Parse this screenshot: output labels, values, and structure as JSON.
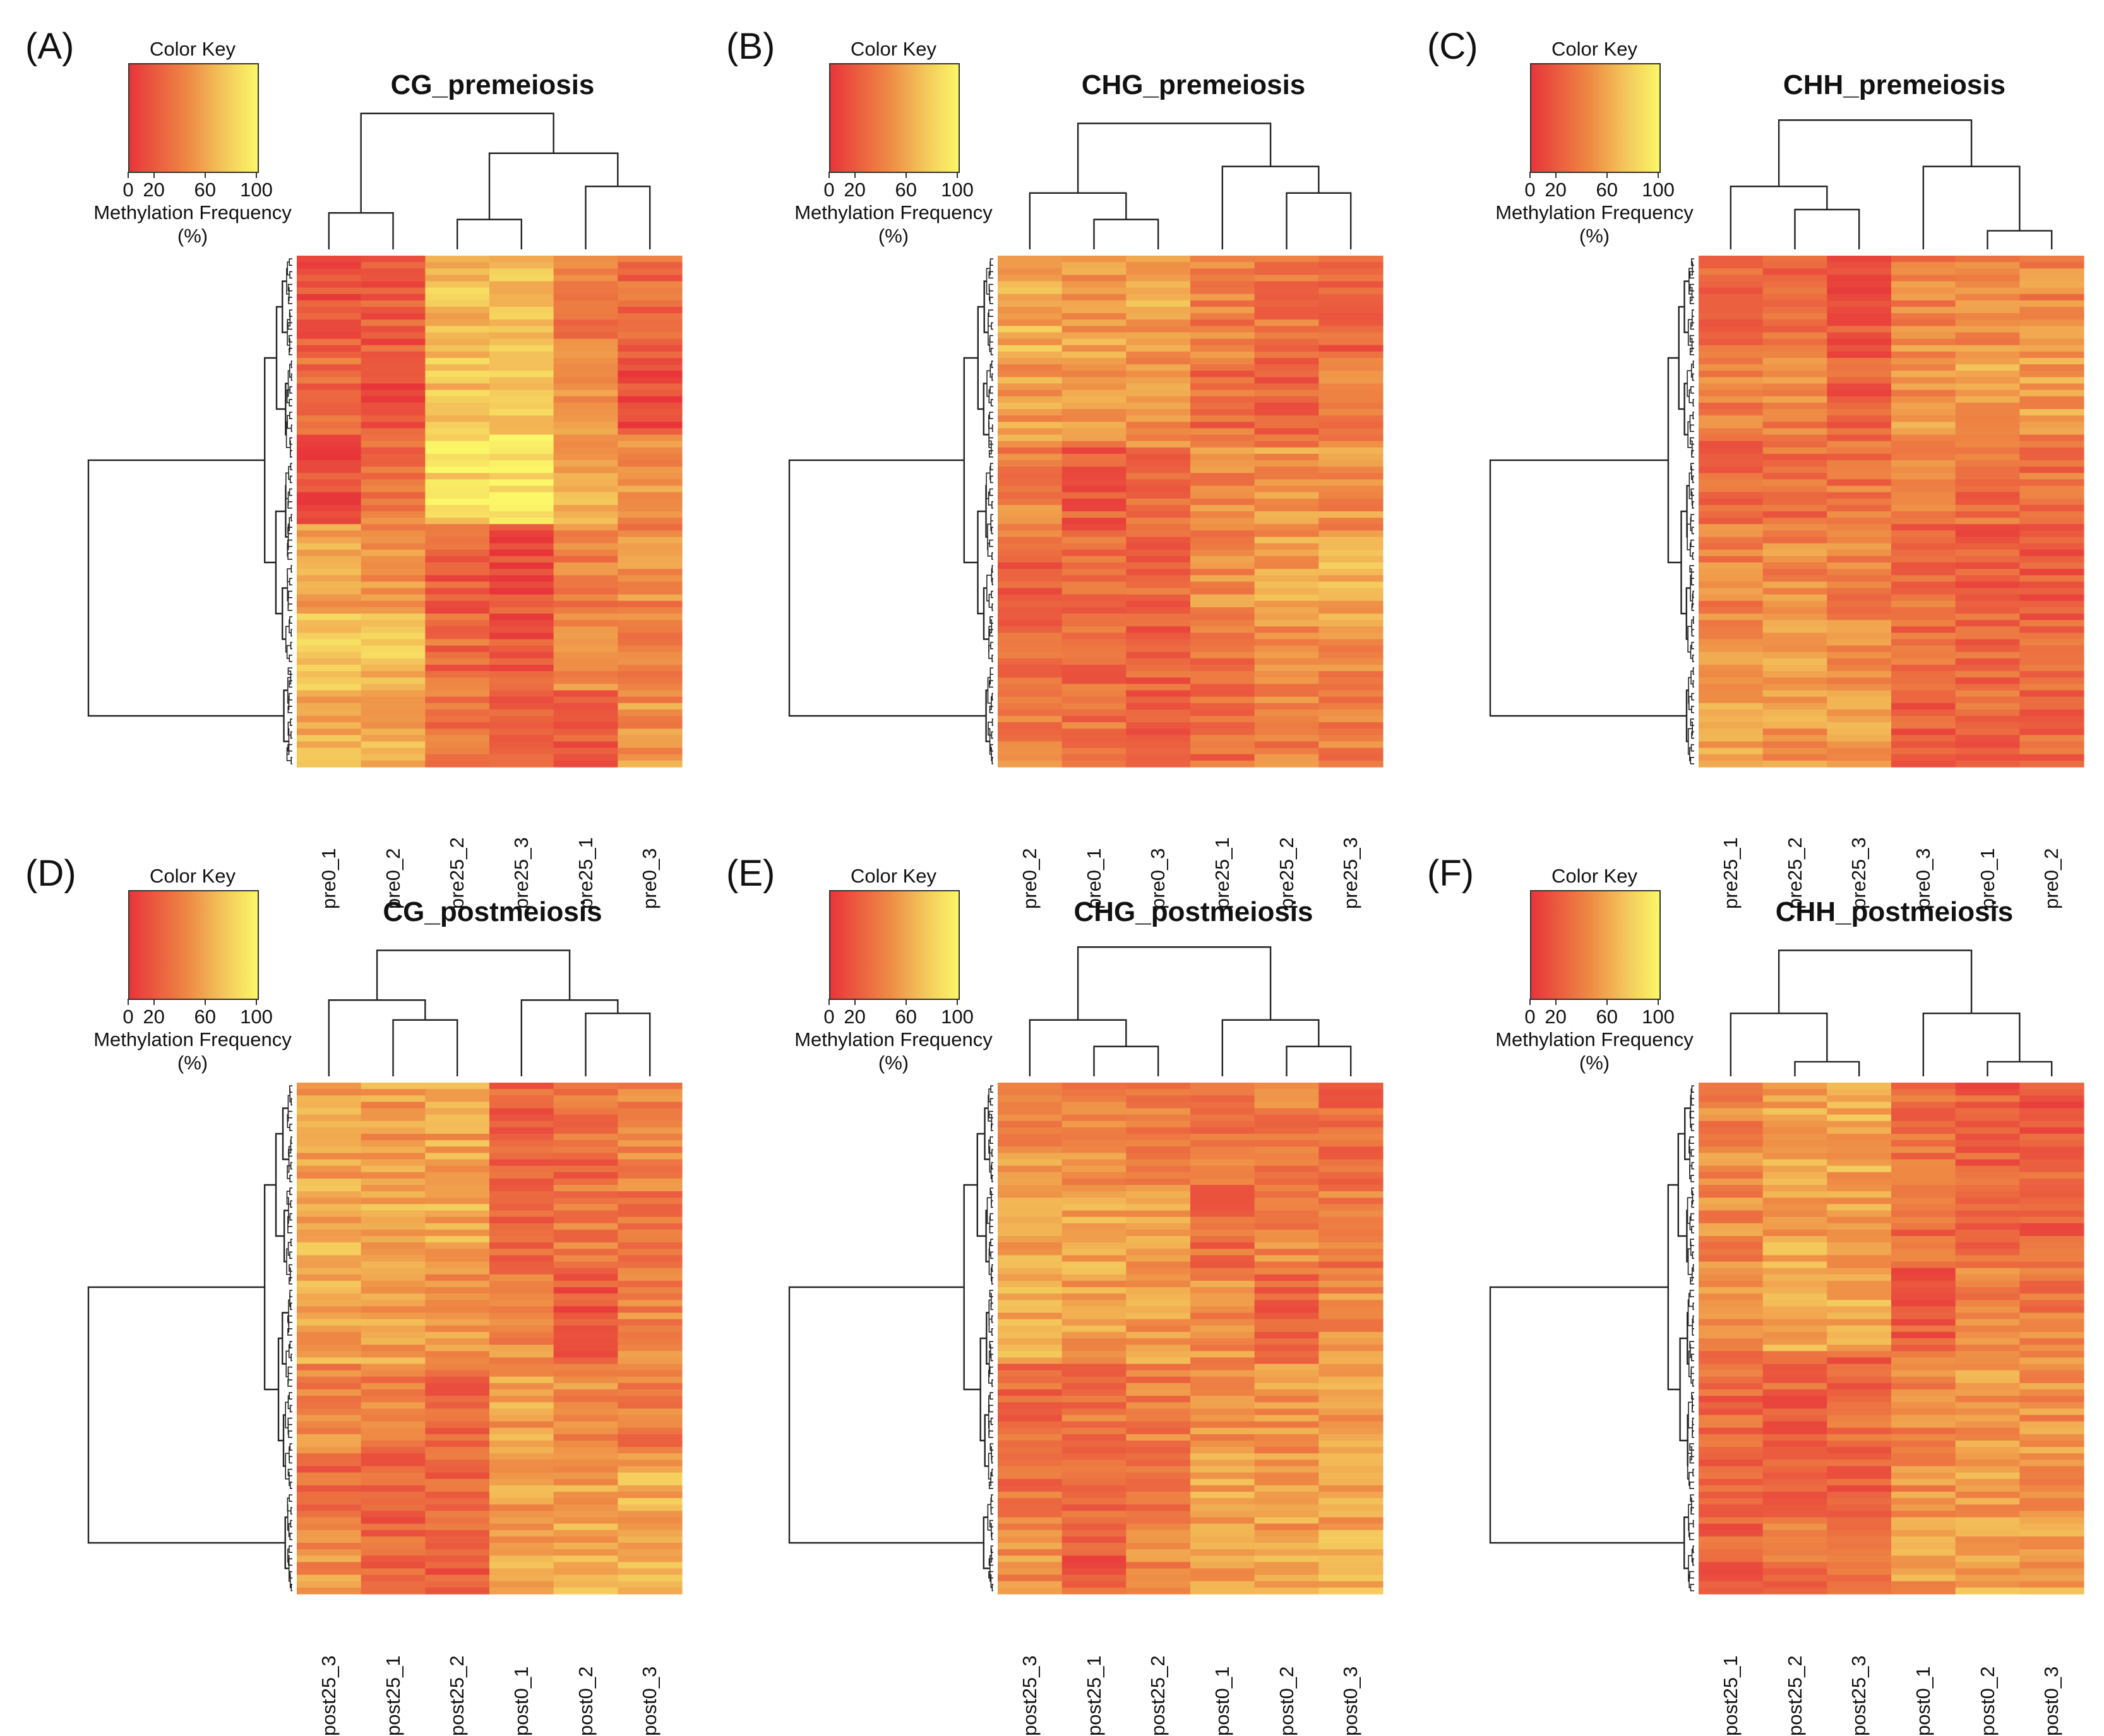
{
  "color_key": {
    "title": "Color Key",
    "ticks": [
      "0",
      "20",
      "60",
      "100"
    ],
    "tick_values": [
      0,
      20,
      60,
      100
    ],
    "axis_label_line1": "Methylation Frequency",
    "axis_label_line2": "(%)",
    "colors": [
      "#e8353a",
      "#ee8844",
      "#f4c95c",
      "#fbf768"
    ]
  },
  "chart_data": [
    {
      "type": "heatmap",
      "panel_label": "(A)",
      "title": "CG_premeiosis",
      "columns": [
        "pre0_1",
        "pre0_2",
        "pre25_2",
        "pre25_3",
        "pre25_1",
        "pre0_3"
      ],
      "value_range": [
        0,
        100
      ],
      "seed": 11,
      "column_dendrogram": [
        [
          0,
          1,
          0.55
        ],
        [
          2,
          3,
          0.45
        ],
        [
          4,
          5,
          0.95
        ],
        [
          7,
          8,
          1.45
        ],
        [
          6,
          9,
          2.05
        ]
      ],
      "blocks": [
        {
          "rows": 16,
          "values": [
            18,
            20,
            70,
            75,
            40,
            30
          ]
        },
        {
          "rows": 12,
          "values": [
            30,
            14,
            72,
            80,
            45,
            12
          ]
        },
        {
          "rows": 14,
          "values": [
            16,
            35,
            85,
            92,
            60,
            48
          ]
        },
        {
          "rows": 14,
          "values": [
            55,
            50,
            22,
            14,
            40,
            45
          ]
        },
        {
          "rows": 12,
          "values": [
            72,
            70,
            30,
            18,
            45,
            40
          ]
        },
        {
          "rows": 12,
          "values": [
            66,
            62,
            32,
            28,
            18,
            50
          ]
        }
      ]
    },
    {
      "type": "heatmap",
      "panel_label": "(B)",
      "title": "CHG_premeiosis",
      "columns": [
        "pre0_2",
        "pre0_1",
        "pre0_3",
        "pre25_1",
        "pre25_2",
        "pre25_3"
      ],
      "value_range": [
        0,
        100
      ],
      "seed": 23,
      "column_dendrogram": [
        [
          1,
          2,
          0.45
        ],
        [
          0,
          6,
          0.85
        ],
        [
          4,
          5,
          0.85
        ],
        [
          3,
          8,
          1.25
        ],
        [
          7,
          9,
          1.9
        ]
      ],
      "blocks": [
        {
          "rows": 16,
          "values": [
            62,
            55,
            58,
            40,
            35,
            22
          ]
        },
        {
          "rows": 14,
          "values": [
            55,
            50,
            52,
            30,
            28,
            40
          ]
        },
        {
          "rows": 14,
          "values": [
            40,
            22,
            28,
            45,
            52,
            50
          ]
        },
        {
          "rows": 14,
          "values": [
            22,
            32,
            30,
            48,
            58,
            62
          ]
        },
        {
          "rows": 12,
          "values": [
            35,
            30,
            25,
            35,
            45,
            42
          ]
        },
        {
          "rows": 10,
          "values": [
            38,
            32,
            28,
            30,
            40,
            38
          ]
        }
      ]
    },
    {
      "type": "heatmap",
      "panel_label": "(C)",
      "title": "CHH_premeiosis",
      "columns": [
        "pre25_1",
        "pre25_2",
        "pre25_3",
        "pre0_3",
        "pre0_1",
        "pre0_2"
      ],
      "value_range": [
        0,
        100
      ],
      "seed": 37,
      "column_dendrogram": [
        [
          1,
          2,
          0.6
        ],
        [
          0,
          6,
          0.95
        ],
        [
          4,
          5,
          0.28
        ],
        [
          3,
          8,
          1.25
        ],
        [
          7,
          9,
          1.95
        ]
      ],
      "blocks": [
        {
          "rows": 14,
          "values": [
            30,
            28,
            20,
            40,
            48,
            45
          ]
        },
        {
          "rows": 14,
          "values": [
            40,
            42,
            22,
            50,
            58,
            55
          ]
        },
        {
          "rows": 14,
          "values": [
            25,
            30,
            35,
            48,
            30,
            32
          ]
        },
        {
          "rows": 14,
          "values": [
            42,
            45,
            40,
            30,
            22,
            20
          ]
        },
        {
          "rows": 12,
          "values": [
            50,
            55,
            48,
            32,
            25,
            25
          ]
        },
        {
          "rows": 12,
          "values": [
            55,
            52,
            58,
            22,
            28,
            30
          ]
        }
      ]
    },
    {
      "type": "heatmap",
      "panel_label": "(D)",
      "title": "CG_postmeiosis",
      "columns": [
        "post25_3",
        "post25_1",
        "post25_2",
        "post0_1",
        "post0_2",
        "post0_3"
      ],
      "value_range": [
        0,
        100
      ],
      "seed": 41,
      "column_dendrogram": [
        [
          1,
          2,
          0.85
        ],
        [
          0,
          6,
          1.15
        ],
        [
          4,
          5,
          0.95
        ],
        [
          3,
          8,
          1.15
        ],
        [
          7,
          9,
          1.9
        ]
      ],
      "blocks": [
        {
          "rows": 16,
          "values": [
            60,
            55,
            58,
            25,
            30,
            40
          ]
        },
        {
          "rows": 14,
          "values": [
            62,
            60,
            62,
            22,
            35,
            38
          ]
        },
        {
          "rows": 14,
          "values": [
            58,
            55,
            52,
            45,
            20,
            42
          ]
        },
        {
          "rows": 14,
          "values": [
            45,
            40,
            25,
            55,
            45,
            40
          ]
        },
        {
          "rows": 12,
          "values": [
            30,
            25,
            30,
            55,
            58,
            62
          ]
        },
        {
          "rows": 10,
          "values": [
            50,
            25,
            20,
            60,
            62,
            65
          ]
        }
      ]
    },
    {
      "type": "heatmap",
      "panel_label": "(E)",
      "title": "CHG_postmeiosis",
      "columns": [
        "post25_3",
        "post25_1",
        "post25_2",
        "post0_1",
        "post0_2",
        "post0_3"
      ],
      "value_range": [
        0,
        100
      ],
      "seed": 53,
      "column_dendrogram": [
        [
          1,
          2,
          0.45
        ],
        [
          0,
          6,
          0.85
        ],
        [
          4,
          5,
          0.45
        ],
        [
          3,
          8,
          0.85
        ],
        [
          7,
          9,
          1.95
        ]
      ],
      "blocks": [
        {
          "rows": 16,
          "values": [
            50,
            45,
            42,
            35,
            40,
            30
          ]
        },
        {
          "rows": 14,
          "values": [
            55,
            58,
            55,
            30,
            45,
            38
          ]
        },
        {
          "rows": 14,
          "values": [
            58,
            55,
            52,
            50,
            28,
            48
          ]
        },
        {
          "rows": 14,
          "values": [
            28,
            35,
            40,
            48,
            52,
            55
          ]
        },
        {
          "rows": 12,
          "values": [
            35,
            30,
            28,
            55,
            55,
            58
          ]
        },
        {
          "rows": 10,
          "values": [
            48,
            22,
            45,
            60,
            65,
            62
          ]
        }
      ]
    },
    {
      "type": "heatmap",
      "panel_label": "(F)",
      "title": "CHH_postmeiosis",
      "columns": [
        "post25_1",
        "post25_2",
        "post25_3",
        "post0_1",
        "post0_2",
        "post0_3"
      ],
      "value_range": [
        0,
        100
      ],
      "seed": 67,
      "column_dendrogram": [
        [
          1,
          2,
          0.22
        ],
        [
          0,
          6,
          0.95
        ],
        [
          4,
          5,
          0.22
        ],
        [
          3,
          8,
          0.95
        ],
        [
          7,
          9,
          1.9
        ]
      ],
      "blocks": [
        {
          "rows": 14,
          "values": [
            45,
            60,
            62,
            35,
            22,
            20
          ]
        },
        {
          "rows": 14,
          "values": [
            45,
            58,
            55,
            30,
            25,
            25
          ]
        },
        {
          "rows": 14,
          "values": [
            48,
            62,
            60,
            20,
            40,
            38
          ]
        },
        {
          "rows": 14,
          "values": [
            28,
            25,
            28,
            45,
            52,
            50
          ]
        },
        {
          "rows": 12,
          "values": [
            30,
            28,
            25,
            50,
            55,
            52
          ]
        },
        {
          "rows": 12,
          "values": [
            25,
            35,
            38,
            55,
            58,
            58
          ]
        }
      ]
    }
  ]
}
